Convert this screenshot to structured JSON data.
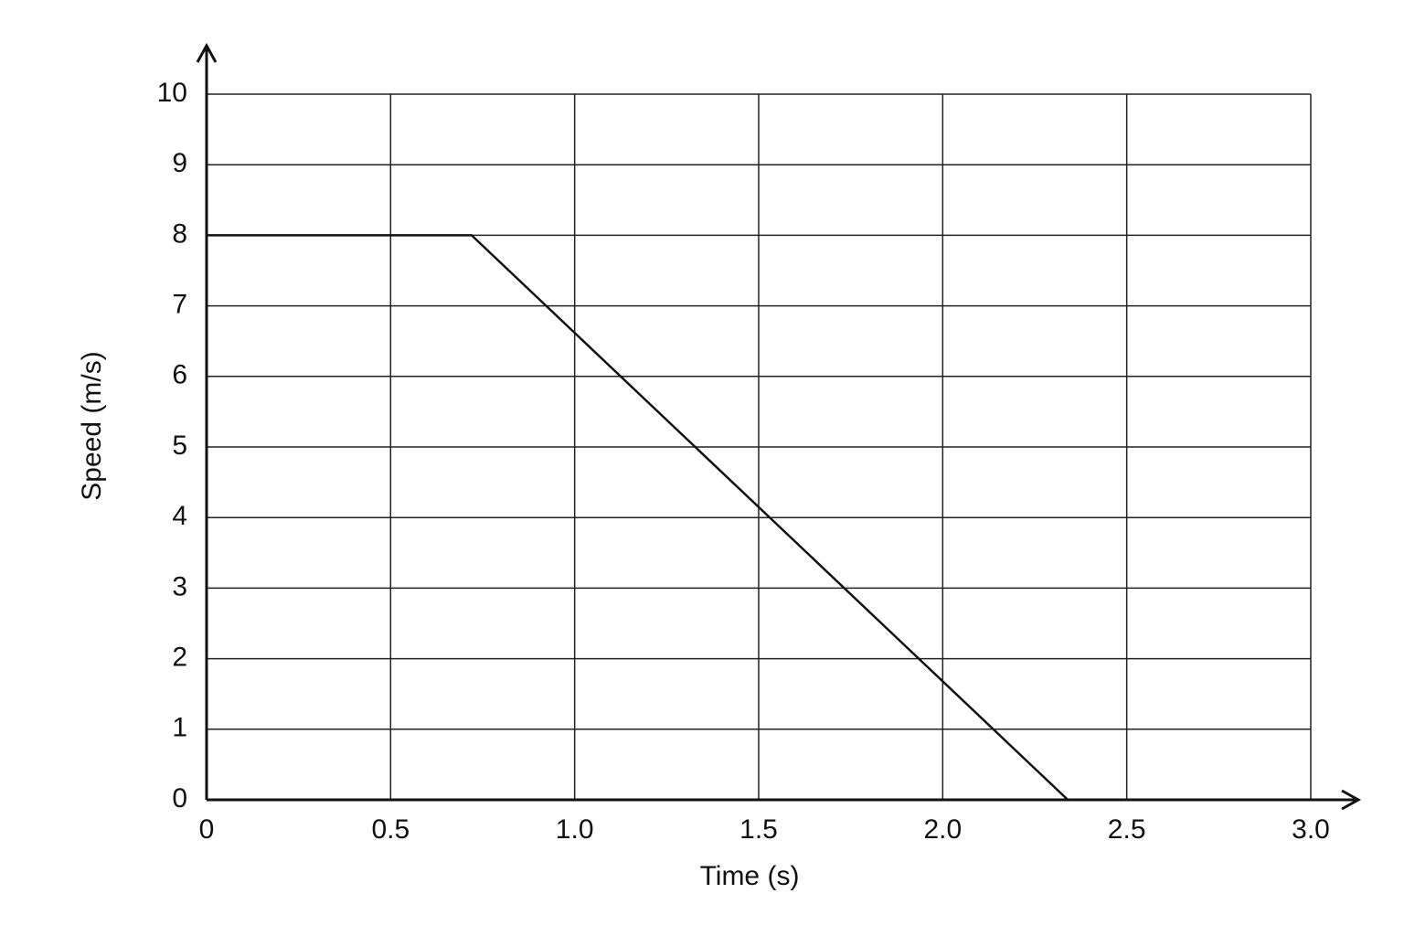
{
  "chart_data": {
    "type": "line",
    "x_label": "Time (s)",
    "y_label": "Speed (m/s)",
    "x": [
      0,
      0.72,
      2.34
    ],
    "values": [
      8,
      8,
      0
    ],
    "color": "#111111",
    "xlim": [
      0,
      3
    ],
    "ylim": [
      0,
      10
    ],
    "xticks": [
      0,
      0.5,
      {
        "value": 1,
        "label": "1.0"
      },
      1.5,
      {
        "value": 2,
        "label": "2.0"
      },
      2.5,
      {
        "value": 3,
        "label": "3.0"
      }
    ],
    "yticks": [
      0,
      1,
      2,
      3,
      4,
      5,
      6,
      7,
      8,
      9,
      10
    ],
    "grid": true
  }
}
